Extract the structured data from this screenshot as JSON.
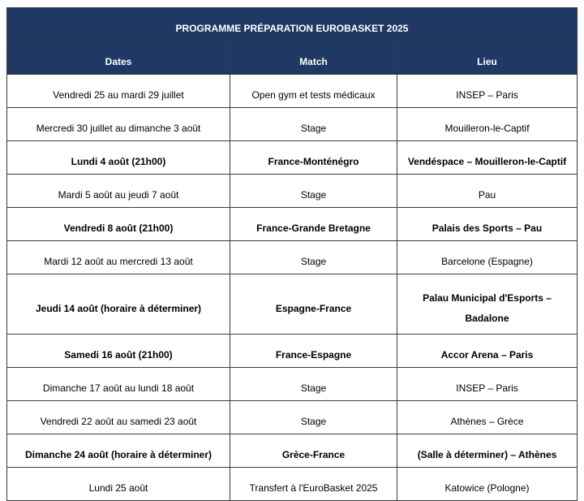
{
  "table": {
    "title": "PROGRAMME PRÉPARATION EUROBASKET 2025",
    "columns": [
      "Dates",
      "Match",
      "Lieu"
    ],
    "rows": [
      {
        "cells": [
          "Vendredi 25 au mardi 29 juillet",
          "Open gym et tests médicaux",
          "INSEP – Paris"
        ],
        "bold": false
      },
      {
        "cells": [
          "Mercredi 30 juillet au dimanche 3 août",
          "Stage",
          "Mouilleron-le-Captif"
        ],
        "bold": false
      },
      {
        "cells": [
          "Lundi 4 août (21h00)",
          "France-Monténégro",
          "Vendéspace – Mouilleron-le-Captif"
        ],
        "bold": true
      },
      {
        "cells": [
          "Mardi 5 août au jeudi 7 août",
          "Stage",
          "Pau"
        ],
        "bold": false
      },
      {
        "cells": [
          "Vendredi 8 août (21h00)",
          "France-Grande Bretagne",
          "Palais des Sports – Pau"
        ],
        "bold": true
      },
      {
        "cells": [
          "Mardi 12 août au mercredi 13 août",
          "Stage",
          "Barcelone (Espagne)"
        ],
        "bold": false
      },
      {
        "cells": [
          "Jeudi 14 août (horaire à déterminer)",
          "Espagne-France",
          "Palau Municipal d'Esports – Badalone"
        ],
        "bold": true
      },
      {
        "cells": [
          "Samedi 16 août (21h00)",
          "France-Espagne",
          "Accor Arena – Paris"
        ],
        "bold": true
      },
      {
        "cells": [
          "Dimanche 17 août au lundi 18 août",
          "Stage",
          "INSEP – Paris"
        ],
        "bold": false
      },
      {
        "cells": [
          "Vendredi 22 août au samedi 23 août",
          "Stage",
          "Athènes – Grèce"
        ],
        "bold": false
      },
      {
        "cells": [
          "Dimanche 24 août (horaire à déterminer)",
          "Grèce-France",
          "(Salle à déterminer) – Athènes"
        ],
        "bold": true
      },
      {
        "cells": [
          "Lundi 25 août",
          "Transfert à l'EuroBasket 2025",
          "Katowice (Pologne)"
        ],
        "bold": false
      }
    ]
  }
}
